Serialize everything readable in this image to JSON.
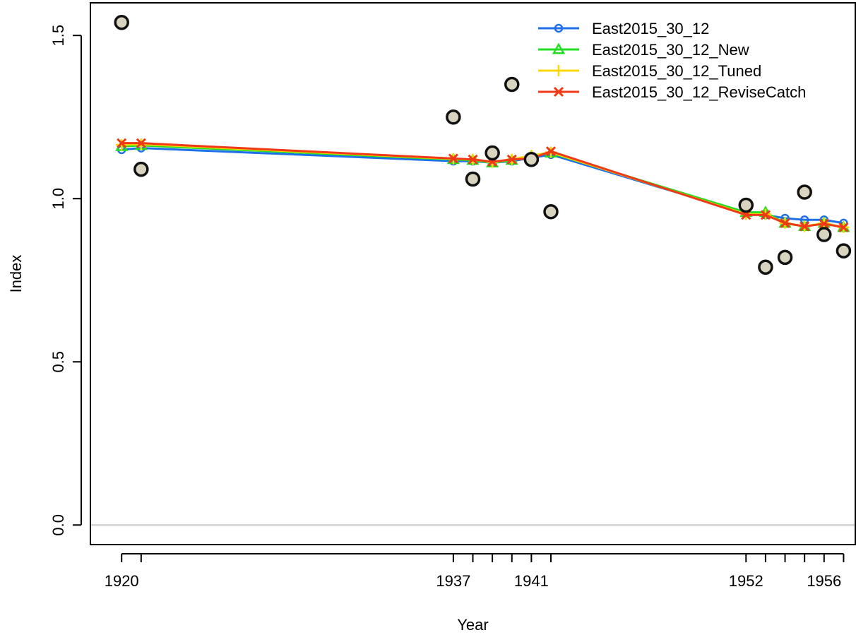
{
  "chart_data": {
    "type": "line",
    "title": "",
    "xlabel": "Year",
    "ylabel": "Index",
    "xlim": [
      1918.4,
      1957.6
    ],
    "ylim": [
      -0.06,
      1.6
    ],
    "x_ticks": [
      1920,
      1937,
      1941,
      1952,
      1956
    ],
    "y_ticks": [
      0.0,
      0.5,
      1.0,
      1.5
    ],
    "y_tick_labels": [
      "0.0",
      "0.5",
      "1.0",
      "1.5"
    ],
    "reference_line": {
      "y": 0,
      "color": "#c8c8c8"
    },
    "legend_position": "top-right",
    "x": [
      1920,
      1921,
      1937,
      1938,
      1939,
      1940,
      1941,
      1942,
      1952,
      1953,
      1954,
      1955,
      1956,
      1957
    ],
    "observed": {
      "marker": "filled-circle",
      "values": [
        1.54,
        1.09,
        1.25,
        1.06,
        1.14,
        1.35,
        1.12,
        0.96,
        0.98,
        0.79,
        0.82,
        1.02,
        0.89,
        0.84
      ]
    },
    "series": [
      {
        "name": "East2015_30_12",
        "color": "#1f6fe8",
        "marker": "circle",
        "values": [
          1.15,
          1.155,
          1.115,
          1.115,
          1.11,
          1.115,
          1.125,
          1.135,
          0.955,
          0.95,
          0.94,
          0.935,
          0.935,
          0.925
        ]
      },
      {
        "name": "East2015_30_12_New",
        "color": "#22dd22",
        "marker": "triangle",
        "values": [
          1.16,
          1.163,
          1.12,
          1.118,
          1.11,
          1.118,
          1.13,
          1.14,
          0.958,
          0.958,
          0.925,
          0.915,
          0.925,
          0.912
        ]
      },
      {
        "name": "East2015_30_12_Tuned",
        "color": "#ffd700",
        "marker": "plus",
        "values": [
          1.165,
          1.167,
          1.122,
          1.12,
          1.112,
          1.12,
          1.132,
          1.142,
          0.952,
          0.952,
          0.925,
          0.915,
          0.925,
          0.912
        ]
      },
      {
        "name": "East2015_30_12_ReviseCatch",
        "color": "#f03a17",
        "marker": "cross",
        "values": [
          1.17,
          1.17,
          1.123,
          1.12,
          1.113,
          1.12,
          1.123,
          1.145,
          0.95,
          0.95,
          0.925,
          0.915,
          0.923,
          0.912
        ]
      }
    ]
  }
}
